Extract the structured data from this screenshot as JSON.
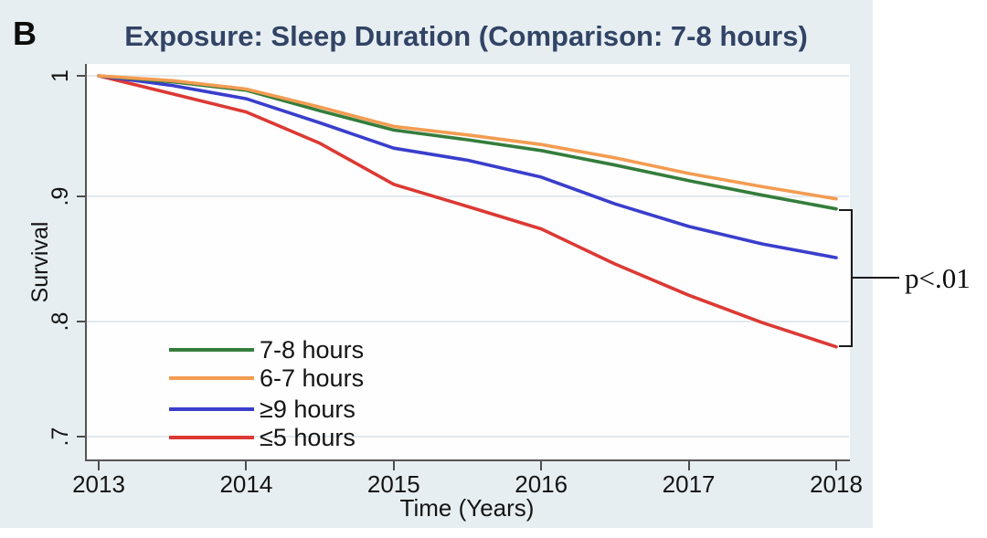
{
  "panel_label": "B",
  "title": "Exposure: Sleep Duration (Comparison: 7-8 hours)",
  "annotation": {
    "text": "p<.01"
  },
  "colors": {
    "figure_background": "#e7eef2",
    "plot_background": "#fefefe",
    "title_text": "#324465",
    "axis": "#555555",
    "gridline": "#e3e9ed",
    "bracket": "#1a1a1a"
  },
  "chart_data": {
    "type": "line",
    "title": "Exposure: Sleep Duration (Comparison: 7-8 hours)",
    "xlabel": "Time (Years)",
    "ylabel": "Survival",
    "xlim": [
      2013,
      2018
    ],
    "ylim": [
      0.7,
      1.0
    ],
    "grid": true,
    "legend_position": "lower-left-inside",
    "x_ticks": [
      "2013",
      "2014",
      "2015",
      "2016",
      "2017",
      "2018"
    ],
    "y_ticks": [
      "1",
      ".9",
      ".8",
      ".7"
    ],
    "y_tick_values": [
      1.0,
      0.9,
      0.8,
      0.7
    ],
    "x": [
      2013,
      2013.5,
      2014,
      2014.5,
      2015,
      2015.5,
      2016,
      2016.5,
      2017,
      2017.5,
      2018
    ],
    "series": [
      {
        "name": "7-8 hours",
        "color": "#347d3c",
        "values": [
          1.0,
          0.995,
          0.988,
          0.971,
          0.955,
          0.947,
          0.938,
          0.926,
          0.913,
          0.901,
          0.89
        ]
      },
      {
        "name": "6-7 hours",
        "color": "#f39c52",
        "values": [
          1.0,
          0.996,
          0.989,
          0.974,
          0.958,
          0.951,
          0.943,
          0.932,
          0.919,
          0.908,
          0.898
        ]
      },
      {
        "name": "≥9 hours",
        "color": "#3a3ecc",
        "values": [
          1.0,
          0.992,
          0.981,
          0.961,
          0.94,
          0.93,
          0.916,
          0.894,
          0.876,
          0.862,
          0.851
        ]
      },
      {
        "name": "≤5 hours",
        "color": "#dc3934",
        "values": [
          1.0,
          0.985,
          0.97,
          0.944,
          0.91,
          0.892,
          0.874,
          0.846,
          0.821,
          0.799,
          0.778
        ]
      }
    ],
    "annotations": [
      {
        "text": "p<.01",
        "type": "bracket",
        "spans_series": [
          "7-8 hours",
          "≤5 hours"
        ],
        "at_x": 2018
      }
    ]
  }
}
